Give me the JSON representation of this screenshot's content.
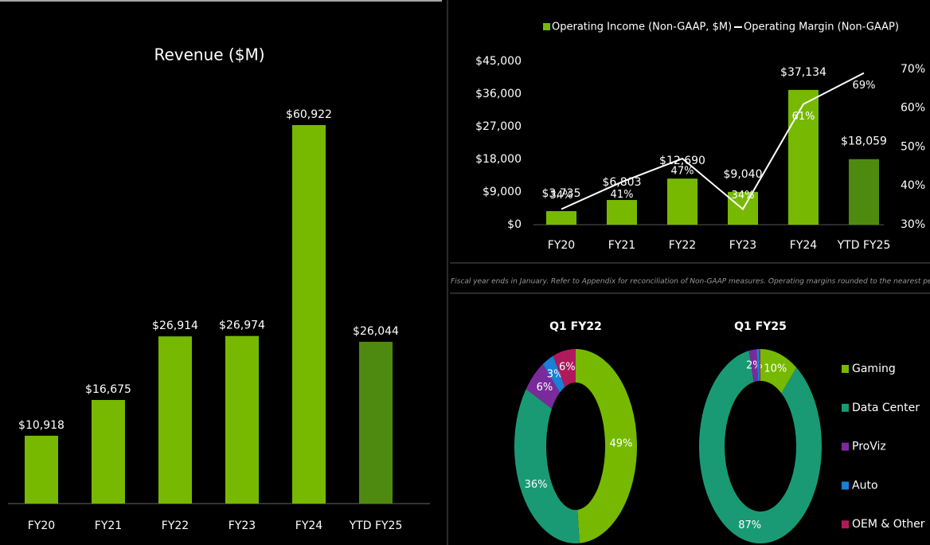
{
  "chart_data": [
    {
      "type": "bar",
      "title": "Revenue ($M)",
      "categories": [
        "FY20",
        "FY21",
        "FY22",
        "FY23",
        "FY24",
        "YTD FY25"
      ],
      "values": [
        10918,
        16675,
        26914,
        26974,
        60922,
        26044
      ],
      "value_labels": [
        "$10,918",
        "$16,675",
        "$26,914",
        "$26,974",
        "$60,922",
        "$26,044"
      ],
      "colors": [
        "#76b900",
        "#76b900",
        "#76b900",
        "#76b900",
        "#76b900",
        "#4f8a10"
      ]
    },
    {
      "type": "combo",
      "categories": [
        "FY20",
        "FY21",
        "FY22",
        "FY23",
        "FY24",
        "YTD FY25"
      ],
      "series": [
        {
          "name": "Operating Income (Non-GAAP, $M)",
          "type": "bar",
          "color": "#76b900",
          "colors": [
            "#76b900",
            "#76b900",
            "#76b900",
            "#76b900",
            "#76b900",
            "#4f8a10"
          ],
          "values": [
            3735,
            6803,
            12690,
            9040,
            37134,
            18059
          ],
          "value_labels": [
            "$3,735",
            "$6,803",
            "$12,690",
            "$9,040",
            "$37,134",
            "$18,059"
          ]
        },
        {
          "name": "Operating Margin (Non-GAAP)",
          "type": "line",
          "color": "#ffffff",
          "axis": "y2",
          "values": [
            34,
            41,
            47,
            34,
            61,
            69
          ],
          "value_labels": [
            "34%",
            "41%",
            "47%",
            "34%",
            "61%",
            "69%"
          ]
        }
      ],
      "ylim": [
        0,
        45000
      ],
      "yticks": [
        {
          "value": 0,
          "label": "$0"
        },
        {
          "value": 9000,
          "label": "$9,000"
        },
        {
          "value": 18000,
          "label": "$18,000"
        },
        {
          "value": 27000,
          "label": "$27,000"
        },
        {
          "value": 36000,
          "label": "$36,000"
        },
        {
          "value": 45000,
          "label": "$45,000"
        }
      ],
      "y2lim": [
        30,
        72
      ],
      "y2ticks": [
        {
          "value": 30,
          "label": "30%"
        },
        {
          "value": 40,
          "label": "40%"
        },
        {
          "value": 50,
          "label": "50%"
        },
        {
          "value": 60,
          "label": "60%"
        },
        {
          "value": 70,
          "label": "70%"
        }
      ],
      "legend": "top"
    },
    {
      "type": "donut",
      "title": "Q1 FY22",
      "categories": [
        "Gaming",
        "Data Center",
        "ProViz",
        "Auto",
        "OEM & Other"
      ],
      "values": [
        49,
        36,
        6,
        3,
        6
      ],
      "value_labels": [
        "49%",
        "36%",
        "6%",
        "3%",
        "6%"
      ],
      "colors": [
        "#76b900",
        "#1a9a74",
        "#7b2a9c",
        "#1a7fd6",
        "#b0195c"
      ]
    },
    {
      "type": "donut",
      "title": "Q1 FY25",
      "categories": [
        "Gaming",
        "Data Center",
        "ProViz",
        "Auto",
        "OEM & Other"
      ],
      "values": [
        10,
        87,
        2,
        0.7,
        0.3
      ],
      "value_labels": [
        "10%",
        "87%",
        "2%",
        null,
        null
      ],
      "colors": [
        "#76b900",
        "#1a9a74",
        "#7b2a9c",
        "#1a7fd6",
        "#b0195c"
      ]
    }
  ],
  "footnote": "Fiscal year ends in January. Refer to Appendix for reconciliation of Non-GAAP measures. Operating margins rounded to the nearest percent"
}
